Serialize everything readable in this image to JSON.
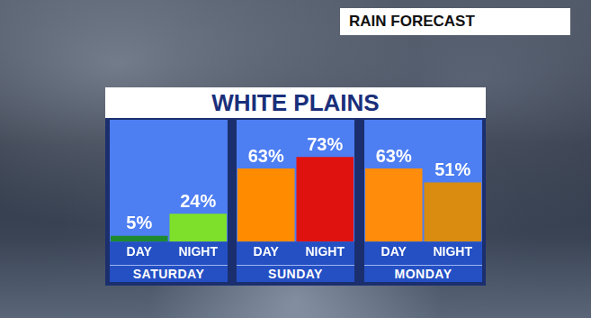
{
  "chart_data": {
    "type": "bar",
    "title": "WHITE PLAINS",
    "subtitle": "RAIN FORECAST",
    "categories": [
      "DAY",
      "NIGHT",
      "DAY",
      "NIGHT",
      "DAY",
      "NIGHT"
    ],
    "groups": [
      "SATURDAY",
      "SUNDAY",
      "MONDAY"
    ],
    "values": [
      5,
      24,
      63,
      73,
      63,
      51
    ],
    "value_labels": [
      "5%",
      "24%",
      "63%",
      "73%",
      "63%",
      "51%"
    ],
    "colors": [
      "#1e8a2e",
      "#7ee02a",
      "#ff8c00",
      "#e0120f",
      "#ff8c0a",
      "#d98c10"
    ],
    "ylim": [
      0,
      105
    ],
    "grid": false,
    "data_labels": true,
    "tick_labels": "x"
  }
}
